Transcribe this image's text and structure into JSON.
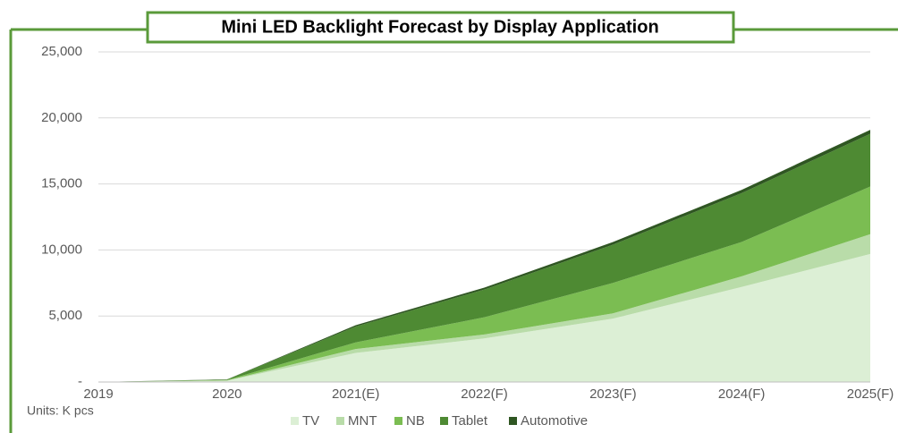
{
  "chart_data": {
    "type": "stacked_area",
    "title": "Mini LED Backlight Forecast by Display Application",
    "units": "Units: K pcs",
    "categories": [
      "2019",
      "2020",
      "2021(E)",
      "2022(F)",
      "2023(F)",
      "2024(F)",
      "2025(F)"
    ],
    "series": [
      {
        "name": "TV",
        "color": "#dcefd5",
        "values": [
          0,
          100,
          2200,
          3300,
          4800,
          7200,
          9700
        ]
      },
      {
        "name": "MNT",
        "color": "#b9dca9",
        "values": [
          0,
          20,
          300,
          300,
          400,
          800,
          1500
        ]
      },
      {
        "name": "NB",
        "color": "#7bbd52",
        "values": [
          0,
          30,
          500,
          1300,
          2300,
          2600,
          3600
        ]
      },
      {
        "name": "Tablet",
        "color": "#4e8a33",
        "values": [
          0,
          40,
          1200,
          2100,
          2900,
          3700,
          4000
        ]
      },
      {
        "name": "Automotive",
        "color": "#2f5622",
        "values": [
          0,
          10,
          100,
          150,
          200,
          250,
          300
        ]
      }
    ],
    "ylim": [
      0,
      25000
    ],
    "yticks": [
      {
        "value": 0,
        "label": "-"
      },
      {
        "value": 5000,
        "label": "5,000"
      },
      {
        "value": 10000,
        "label": "10,000"
      },
      {
        "value": 15000,
        "label": "15,000"
      },
      {
        "value": 20000,
        "label": "20,000"
      },
      {
        "value": 25000,
        "label": "25,000"
      }
    ],
    "grid": true,
    "legend": "bottom"
  }
}
